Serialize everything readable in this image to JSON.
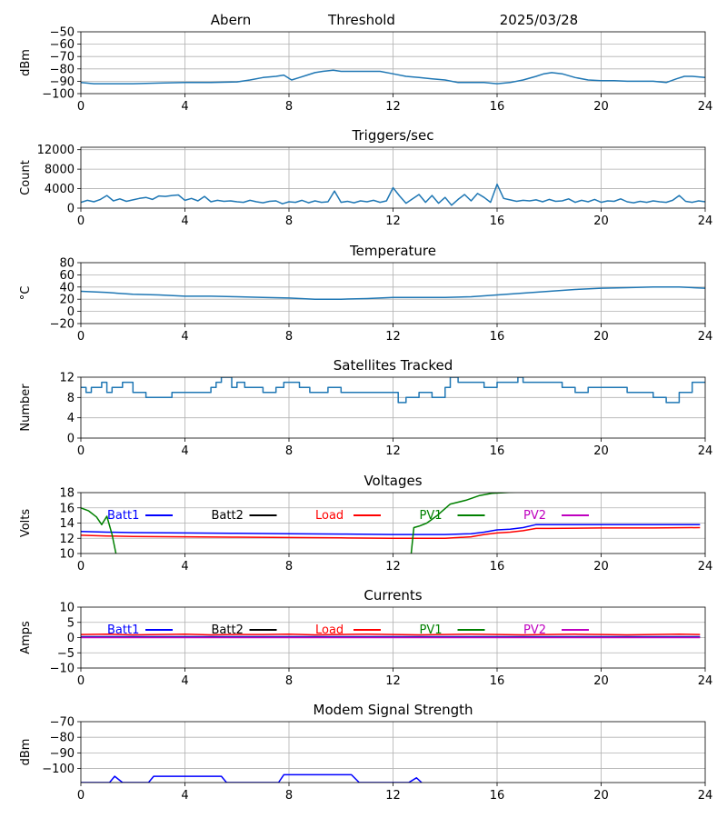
{
  "header": {
    "station": "Abern",
    "threshold_label": "Threshold",
    "date": "2025/03/28"
  },
  "chart_data": [
    {
      "id": "signal",
      "type": "line",
      "title": "",
      "xlabel": "",
      "ylabel": "dBm",
      "xlim": [
        0,
        24
      ],
      "ylim": [
        -100,
        -50
      ],
      "xticks": [
        0,
        4,
        8,
        12,
        16,
        20,
        24
      ],
      "yticks": [
        -100,
        -90,
        -80,
        -70,
        -60,
        -50
      ],
      "grid": true,
      "series": [
        {
          "color": "#1f77b4",
          "step": false,
          "x": [
            0,
            0.5,
            1,
            2,
            3,
            4,
            5,
            6,
            6.5,
            7,
            7.5,
            7.8,
            8.1,
            8.4,
            8.7,
            9.0,
            9.3,
            9.7,
            10,
            10.5,
            11,
            11.5,
            12,
            12.5,
            13,
            13.5,
            14,
            14.5,
            15,
            15.5,
            16,
            16.5,
            17,
            17.5,
            17.8,
            18.1,
            18.5,
            19,
            19.5,
            20,
            20.5,
            21,
            21.5,
            22,
            22.5,
            22.9,
            23.2,
            23.5,
            24
          ],
          "values": [
            -91,
            -92,
            -92,
            -92,
            -91.5,
            -91,
            -91,
            -90.5,
            -89,
            -87,
            -86,
            -85,
            -89,
            -87,
            -85,
            -83,
            -82,
            -81,
            -82,
            -82,
            -82,
            -82,
            -84,
            -86,
            -87,
            -88,
            -89,
            -91,
            -91,
            -91,
            -92,
            -91,
            -89,
            -86,
            -84,
            -83,
            -84,
            -87,
            -89,
            -89.5,
            -89.5,
            -90,
            -90,
            -90,
            -91,
            -88,
            -86,
            -86,
            -87
          ]
        }
      ]
    },
    {
      "id": "triggers",
      "type": "line",
      "title": "Triggers/sec",
      "xlabel": "",
      "ylabel": "Count",
      "xlim": [
        0,
        24
      ],
      "ylim": [
        0,
        12500
      ],
      "xticks": [
        0,
        4,
        8,
        12,
        16,
        20,
        24
      ],
      "yticks": [
        0,
        4000,
        8000,
        12000
      ],
      "grid": true,
      "series": [
        {
          "color": "#1f77b4",
          "step": false,
          "x": [
            0,
            0.25,
            0.5,
            0.75,
            1.0,
            1.25,
            1.5,
            1.75,
            2.0,
            2.25,
            2.5,
            2.75,
            3.0,
            3.25,
            3.5,
            3.75,
            4.0,
            4.25,
            4.5,
            4.75,
            5.0,
            5.25,
            5.5,
            5.75,
            6.0,
            6.25,
            6.5,
            6.75,
            7.0,
            7.25,
            7.5,
            7.75,
            8.0,
            8.25,
            8.5,
            8.75,
            9.0,
            9.25,
            9.5,
            9.75,
            10.0,
            10.25,
            10.5,
            10.75,
            11.0,
            11.25,
            11.5,
            11.75,
            12.0,
            12.25,
            12.5,
            12.75,
            13.0,
            13.25,
            13.5,
            13.75,
            14.0,
            14.25,
            14.5,
            14.75,
            15.0,
            15.25,
            15.5,
            15.75,
            16.0,
            16.25,
            16.5,
            16.75,
            17.0,
            17.25,
            17.5,
            17.75,
            18.0,
            18.25,
            18.5,
            18.75,
            19.0,
            19.25,
            19.5,
            19.75,
            20.0,
            20.25,
            20.5,
            20.75,
            21.0,
            21.25,
            21.5,
            21.75,
            22.0,
            22.25,
            22.5,
            22.75,
            23.0,
            23.25,
            23.5,
            23.75,
            24.0
          ],
          "values": [
            1200,
            1600,
            1300,
            1800,
            2600,
            1500,
            1900,
            1400,
            1700,
            2000,
            2200,
            1800,
            2500,
            2400,
            2600,
            2700,
            1600,
            2000,
            1500,
            2400,
            1300,
            1600,
            1400,
            1500,
            1300,
            1200,
            1600,
            1300,
            1100,
            1400,
            1500,
            900,
            1300,
            1200,
            1600,
            1100,
            1500,
            1200,
            1300,
            3500,
            1200,
            1400,
            1100,
            1500,
            1300,
            1600,
            1200,
            1500,
            4200,
            2500,
            1000,
            1900,
            2800,
            1200,
            2600,
            1000,
            2200,
            600,
            1800,
            2800,
            1500,
            3000,
            2200,
            1200,
            4900,
            2000,
            1700,
            1400,
            1600,
            1500,
            1700,
            1300,
            1800,
            1400,
            1500,
            1900,
            1200,
            1600,
            1300,
            1800,
            1200,
            1500,
            1400,
            1900,
            1300,
            1100,
            1400,
            1200,
            1500,
            1300,
            1200,
            1600,
            2600,
            1400,
            1200,
            1500,
            1300
          ]
        }
      ]
    },
    {
      "id": "temperature",
      "type": "line",
      "title": "Temperature",
      "xlabel": "",
      "ylabel": "°C",
      "xlim": [
        0,
        24
      ],
      "ylim": [
        -20,
        80
      ],
      "xticks": [
        0,
        4,
        8,
        12,
        16,
        20,
        24
      ],
      "yticks": [
        -20,
        0,
        20,
        40,
        60,
        80
      ],
      "grid": true,
      "series": [
        {
          "color": "#1f77b4",
          "step": false,
          "x": [
            0,
            1,
            2,
            3,
            4,
            5,
            6,
            7,
            8,
            9,
            10,
            11,
            12,
            13,
            14,
            15,
            16,
            17,
            18,
            19,
            20,
            21,
            22,
            23,
            24
          ],
          "values": [
            33,
            31,
            28,
            27,
            25,
            25,
            24,
            23,
            22,
            20,
            20,
            21,
            23,
            23,
            23,
            24,
            27,
            30,
            33,
            36,
            38,
            39,
            40,
            40,
            38
          ]
        }
      ]
    },
    {
      "id": "satellites",
      "type": "line",
      "title": "Satellites Tracked",
      "xlabel": "",
      "ylabel": "Number",
      "xlim": [
        0,
        24
      ],
      "ylim": [
        0,
        12
      ],
      "xticks": [
        0,
        4,
        8,
        12,
        16,
        20,
        24
      ],
      "yticks": [
        0,
        4,
        8,
        12
      ],
      "grid": true,
      "series": [
        {
          "color": "#1f77b4",
          "step": true,
          "x": [
            0,
            0.2,
            0.4,
            0.8,
            1.0,
            1.2,
            1.6,
            2.0,
            2.5,
            3.0,
            3.5,
            4.0,
            4.5,
            5.0,
            5.2,
            5.4,
            5.8,
            6.0,
            6.3,
            7.0,
            7.5,
            7.8,
            8.0,
            8.4,
            8.8,
            9.0,
            9.5,
            10.0,
            11.0,
            11.5,
            12.0,
            12.2,
            12.5,
            13.0,
            13.5,
            14.0,
            14.2,
            14.5,
            15.0,
            15.5,
            16.0,
            16.5,
            16.8,
            17.0,
            17.5,
            18.0,
            18.5,
            19.0,
            19.5,
            20.0,
            20.5,
            21.0,
            21.5,
            22.0,
            22.5,
            23.0,
            23.5,
            24.0
          ],
          "values": [
            10,
            9,
            10,
            11,
            9,
            10,
            11,
            9,
            8,
            8,
            9,
            9,
            9,
            10,
            11,
            12,
            10,
            11,
            10,
            9,
            10,
            11,
            11,
            10,
            9,
            9,
            10,
            9,
            9,
            9,
            9,
            7,
            8,
            9,
            8,
            10,
            12,
            11,
            11,
            10,
            11,
            11,
            12,
            11,
            11,
            11,
            10,
            9,
            10,
            10,
            10,
            9,
            9,
            8,
            7,
            9,
            11,
            11
          ]
        }
      ]
    },
    {
      "id": "voltages",
      "type": "line",
      "title": "Voltages",
      "xlabel": "",
      "ylabel": "Volts",
      "xlim": [
        0,
        24
      ],
      "ylim": [
        10,
        18
      ],
      "xticks": [
        0,
        4,
        8,
        12,
        16,
        20,
        24
      ],
      "yticks": [
        10,
        12,
        14,
        16,
        18
      ],
      "grid": true,
      "legend_ncol": 5,
      "legend_placement": "top",
      "series": [
        {
          "name": "Batt1",
          "color": "#0000ff",
          "step": false,
          "x": [
            0,
            1,
            2,
            4,
            6,
            8,
            10,
            12,
            14,
            15,
            15.5,
            16,
            16.5,
            17,
            17.5,
            18,
            20,
            22,
            23.8
          ],
          "values": [
            12.9,
            12.8,
            12.75,
            12.7,
            12.65,
            12.6,
            12.55,
            12.5,
            12.5,
            12.6,
            12.8,
            13.1,
            13.2,
            13.4,
            13.8,
            13.8,
            13.8,
            13.8,
            13.8
          ]
        },
        {
          "name": "Batt2",
          "color": "#000000",
          "step": false,
          "x": [],
          "values": []
        },
        {
          "name": "Load",
          "color": "#ff0000",
          "step": false,
          "x": [
            0,
            1,
            2,
            4,
            6,
            8,
            10,
            12,
            14,
            15,
            15.5,
            16,
            16.5,
            17,
            17.5,
            18,
            20,
            22,
            23.8
          ],
          "values": [
            12.4,
            12.3,
            12.25,
            12.2,
            12.15,
            12.1,
            12.05,
            12.0,
            12.0,
            12.2,
            12.5,
            12.7,
            12.8,
            13.0,
            13.3,
            13.3,
            13.35,
            13.35,
            13.4
          ]
        },
        {
          "name": "PV1",
          "color": "#008000",
          "step": false,
          "x": [
            0,
            0.3,
            0.6,
            0.8,
            1.0,
            1.2,
            1.35,
            12.7,
            12.8,
            13.0,
            13.3,
            13.7,
            14.2,
            14.8,
            15.3,
            15.8,
            16.3,
            16.8
          ],
          "values": [
            16.0,
            15.6,
            14.8,
            13.8,
            14.9,
            12.5,
            10.0,
            10.0,
            13.4,
            13.6,
            14.0,
            15.0,
            16.5,
            17.0,
            17.6,
            17.9,
            18.0,
            18.1
          ],
          "gap_after": [
            6
          ]
        },
        {
          "name": "PV2",
          "color": "#bf00bf",
          "step": false,
          "x": [],
          "values": []
        }
      ]
    },
    {
      "id": "currents",
      "type": "line",
      "title": "Currents",
      "xlabel": "",
      "ylabel": "Amps",
      "xlim": [
        0,
        24
      ],
      "ylim": [
        -10,
        10
      ],
      "xticks": [
        0,
        4,
        8,
        12,
        16,
        20,
        24
      ],
      "yticks": [
        -10,
        -5,
        0,
        5,
        10
      ],
      "grid": true,
      "legend_ncol": 5,
      "legend_placement": "top",
      "series": [
        {
          "name": "Batt1",
          "color": "#0000ff",
          "step": false,
          "x": [
            0,
            6,
            12,
            18,
            23.8
          ],
          "values": [
            0.3,
            0.3,
            0.3,
            0.3,
            0.3
          ]
        },
        {
          "name": "Batt2",
          "color": "#000000",
          "step": false,
          "x": [],
          "values": []
        },
        {
          "name": "Load",
          "color": "#ff0000",
          "step": false,
          "x": [
            0,
            1,
            2,
            3,
            4,
            5,
            6,
            7,
            8,
            9,
            10,
            11,
            12,
            13,
            14,
            15,
            16,
            17,
            18,
            19,
            20,
            21,
            22,
            23,
            23.8
          ],
          "values": [
            1.0,
            1.1,
            0.9,
            1.0,
            1.1,
            0.9,
            1.0,
            1.0,
            1.1,
            0.9,
            1.0,
            1.1,
            1.0,
            0.9,
            1.0,
            1.1,
            1.0,
            0.9,
            1.0,
            1.1,
            1.0,
            0.9,
            1.0,
            1.1,
            1.0
          ]
        },
        {
          "name": "PV1",
          "color": "#008000",
          "step": false,
          "x": [
            0,
            6,
            12,
            18,
            23.8
          ],
          "values": [
            0.1,
            0.1,
            0.1,
            0.1,
            0.1
          ]
        },
        {
          "name": "PV2",
          "color": "#bf00bf",
          "step": false,
          "x": [
            0,
            6,
            12,
            18,
            23.8
          ],
          "values": [
            0,
            0,
            0,
            0,
            0
          ]
        }
      ]
    },
    {
      "id": "modem",
      "type": "line",
      "title": "Modem Signal Strength",
      "xlabel": "",
      "ylabel": "dBm",
      "xlim": [
        0,
        24
      ],
      "ylim": [
        -109,
        -70
      ],
      "xticks": [
        0,
        4,
        8,
        12,
        16,
        20,
        24
      ],
      "yticks": [
        -100,
        -90,
        -80,
        -70
      ],
      "grid": true,
      "series": [
        {
          "color": "#0000ff",
          "step": false,
          "x": [
            0,
            1.1,
            1.3,
            1.6,
            2.6,
            2.8,
            3.0,
            5.4,
            5.6,
            7.6,
            7.8,
            8.0,
            10.4,
            10.7,
            12.6,
            12.9,
            13.1
          ],
          "values": [
            -109,
            -109,
            -105,
            -109,
            -109,
            -105,
            -105,
            -105,
            -109,
            -109,
            -104,
            -104,
            -104,
            -109,
            -109,
            -106,
            -109
          ]
        }
      ]
    }
  ]
}
